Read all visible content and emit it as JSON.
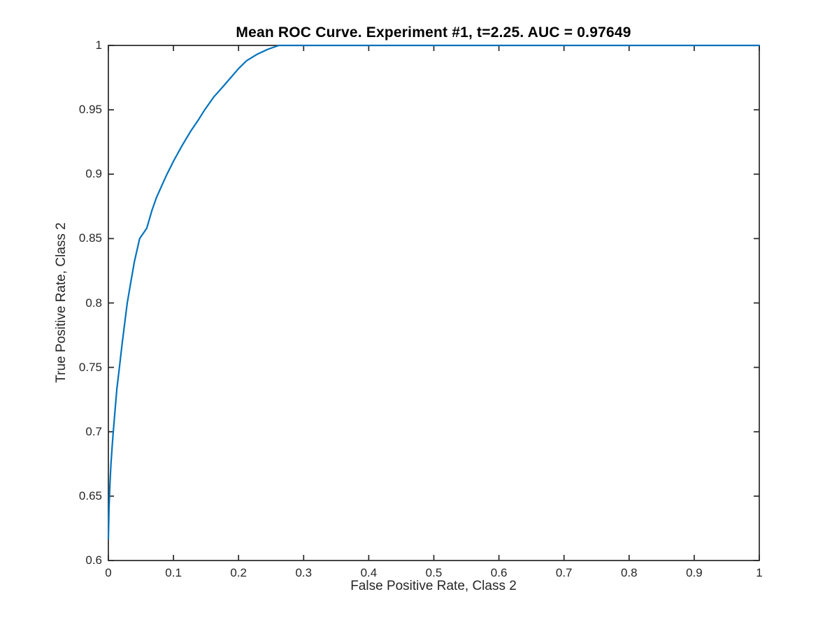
{
  "figure": {
    "background_color": "#ffffff"
  },
  "chart_data": {
    "type": "line",
    "title": "Mean ROC Curve. Experiment #1, t=2.25. AUC = 0.97649",
    "xlabel": "False Positive Rate, Class 2",
    "ylabel": "True Positive Rate, Class 2",
    "xlim": [
      0,
      1
    ],
    "ylim": [
      0.6,
      1
    ],
    "grid": false,
    "legend": "none",
    "box": true,
    "axis_color": "#262626",
    "title_color": "#000000",
    "experiment": "#1",
    "threshold_t": "2.25",
    "auc": "0.97649",
    "x_ticks": [
      0,
      0.1,
      0.2,
      0.3,
      0.4,
      0.5,
      0.6,
      0.7,
      0.8,
      0.9,
      1
    ],
    "x_tick_labels": [
      "0",
      "0.1",
      "0.2",
      "0.3",
      "0.4",
      "0.5",
      "0.6",
      "0.7",
      "0.8",
      "0.9",
      "1"
    ],
    "y_ticks": [
      0.6,
      0.65,
      0.7,
      0.75,
      0.8,
      0.85,
      0.9,
      0.95,
      1
    ],
    "y_tick_labels": [
      "0.6",
      "0.65",
      "0.7",
      "0.75",
      "0.8",
      "0.85",
      "0.9",
      "0.95",
      "1"
    ],
    "series": [
      {
        "name": "Mean ROC curve",
        "color": "#0072BD",
        "line_width": 2.2,
        "points": [
          [
            0,
            0.617
          ],
          [
            0.001,
            0.64
          ],
          [
            0.0025,
            0.66
          ],
          [
            0.004,
            0.675
          ],
          [
            0.006,
            0.69
          ],
          [
            0.0075,
            0.7
          ],
          [
            0.01,
            0.715
          ],
          [
            0.013,
            0.733
          ],
          [
            0.017,
            0.75
          ],
          [
            0.021,
            0.768
          ],
          [
            0.026,
            0.788
          ],
          [
            0.029,
            0.8
          ],
          [
            0.034,
            0.815
          ],
          [
            0.04,
            0.832
          ],
          [
            0.048,
            0.85
          ],
          [
            0.059,
            0.858
          ],
          [
            0.067,
            0.872
          ],
          [
            0.074,
            0.882
          ],
          [
            0.082,
            0.891
          ],
          [
            0.09,
            0.9
          ],
          [
            0.101,
            0.911
          ],
          [
            0.113,
            0.922
          ],
          [
            0.126,
            0.933
          ],
          [
            0.138,
            0.942
          ],
          [
            0.148,
            0.95
          ],
          [
            0.162,
            0.96
          ],
          [
            0.176,
            0.968
          ],
          [
            0.188,
            0.975
          ],
          [
            0.2,
            0.982
          ],
          [
            0.212,
            0.988
          ],
          [
            0.228,
            0.993
          ],
          [
            0.245,
            0.997
          ],
          [
            0.262,
            1.0
          ],
          [
            1.0,
            1.0
          ]
        ]
      }
    ]
  }
}
